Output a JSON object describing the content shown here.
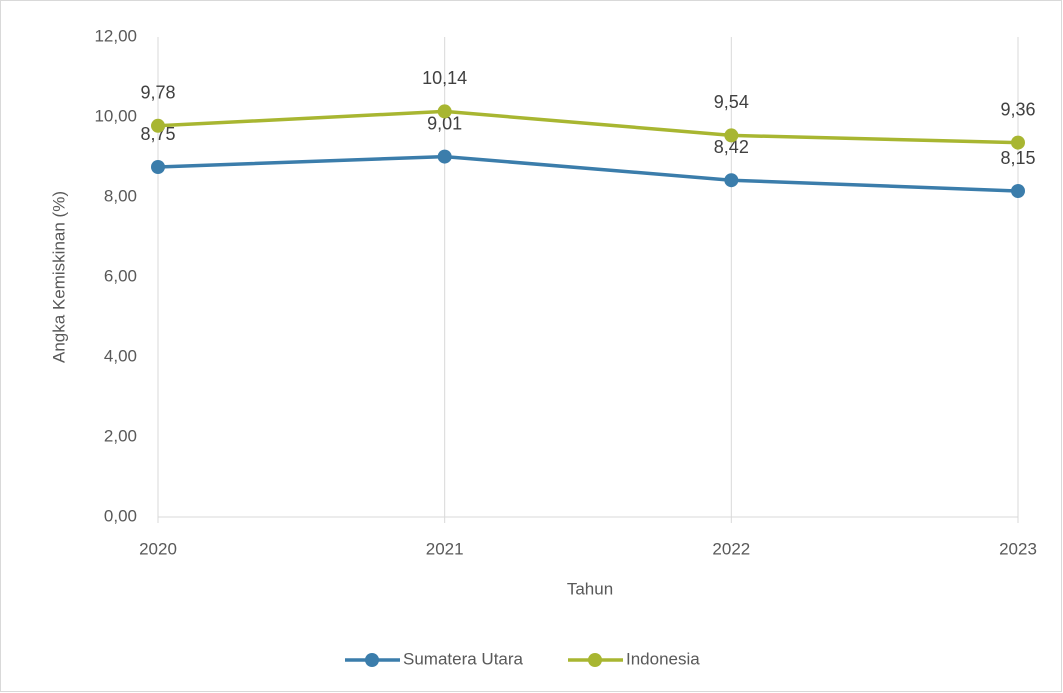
{
  "chart_data": {
    "type": "line",
    "x_label": "Tahun",
    "y_label": "Angka Kemiskinan (%)",
    "categories": [
      "2020",
      "2021",
      "2022",
      "2023"
    ],
    "series": [
      {
        "name": "Sumatera Utara",
        "color": "#3b7dab",
        "values": [
          8.75,
          9.01,
          8.42,
          8.15
        ],
        "value_labels": [
          "8,75",
          "9,01",
          "8,42",
          "8,15"
        ]
      },
      {
        "name": "Indonesia",
        "color": "#a8b631",
        "values": [
          9.78,
          10.14,
          9.54,
          9.36
        ],
        "value_labels": [
          "9,78",
          "10,14",
          "9,54",
          "9,36"
        ]
      }
    ],
    "ylim": [
      0,
      12
    ],
    "yticks": [
      {
        "value": 0,
        "label": "0,00"
      },
      {
        "value": 2,
        "label": "2,00"
      },
      {
        "value": 4,
        "label": "4,00"
      },
      {
        "value": 6,
        "label": "6,00"
      },
      {
        "value": 8,
        "label": "8,00"
      },
      {
        "value": 10,
        "label": "10,00"
      },
      {
        "value": 12,
        "label": "12,00"
      }
    ],
    "grid": "vertical",
    "legend": "bottom"
  }
}
